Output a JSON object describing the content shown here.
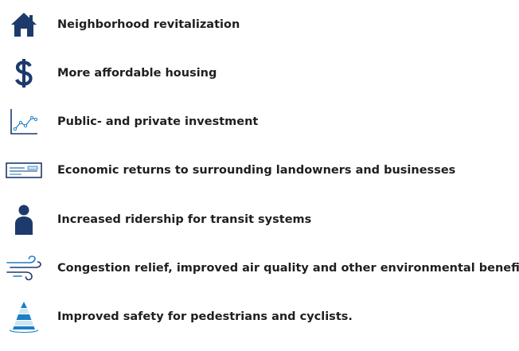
{
  "benefits": [
    {
      "label": "Neighborhood revitalization",
      "icon": "house-icon"
    },
    {
      "label": "More affordable housing",
      "icon": "dollar-sign-icon"
    },
    {
      "label": "Public- and private investment",
      "icon": "line-chart-icon"
    },
    {
      "label": "Economic returns to surrounding landowners and businesses",
      "icon": "bank-check-icon"
    },
    {
      "label": "Increased ridership for transit systems",
      "icon": "person-icon"
    },
    {
      "label": "Congestion relief, improved air quality and other environmental benefits",
      "icon": "wind-icon"
    },
    {
      "label": "Improved safety for pedestrians and cyclists.",
      "icon": "traffic-cone-icon"
    }
  ],
  "colors": {
    "icon_navy": "#1d3a6b",
    "icon_blue": "#1d7fc4",
    "icon_light": "#cfe6f6",
    "text": "#1f1f1f"
  }
}
